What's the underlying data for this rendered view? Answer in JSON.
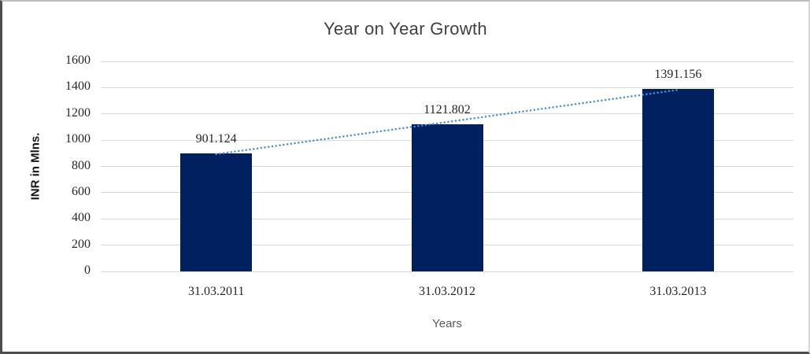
{
  "chart_data": {
    "type": "bar",
    "title": "Year on Year Growth",
    "xlabel": "Years",
    "ylabel": "INR in Mlns.",
    "categories": [
      "31.03.2011",
      "31.03.2012",
      "31.03.2013"
    ],
    "values": [
      901.124,
      1121.802,
      1391.156
    ],
    "data_labels": [
      "901.124",
      "1121.802",
      "1391.156"
    ],
    "yticks": [
      0,
      200,
      400,
      600,
      800,
      1000,
      1200,
      1400,
      1600
    ],
    "ylim": [
      0,
      1600
    ],
    "grid": true,
    "legend": false,
    "trendline": {
      "type": "linear",
      "style": "dotted"
    },
    "colors": {
      "bar": "#002060",
      "trendline": "#4f8fce",
      "gridline": "#d9d9d9",
      "title_text": "#404040",
      "tick_text": "#262626",
      "y_axis_title_text": "#141414",
      "x_axis_title_text": "#595959",
      "background": "#ffffff"
    }
  }
}
